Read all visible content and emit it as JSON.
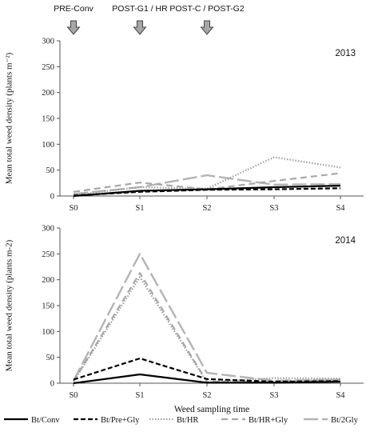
{
  "treatments": [
    {
      "name": "Bt/Conv",
      "color": "#000000",
      "dash": "",
      "width": 2.2
    },
    {
      "name": "Bt/Pre+Gly",
      "color": "#000000",
      "dash": "6,3",
      "width": 2.2
    },
    {
      "name": "Bt/HR",
      "color": "#a0a0a0",
      "dash": "1.5,2",
      "width": 2.2
    },
    {
      "name": "Bt/HR+Gly",
      "color": "#a8a8a8",
      "dash": "8,5",
      "width": 2.2
    },
    {
      "name": "Bt/2Gly",
      "color": "#b4b4b4",
      "dash": "18,5",
      "width": 2.4
    }
  ],
  "arrows": [
    {
      "label": "PRE-Conv",
      "x": "S0"
    },
    {
      "label": "POST-G1 / HR",
      "x": "S1"
    },
    {
      "label": "POST-C / POST-G2",
      "x": "S2"
    }
  ],
  "chart_data": [
    {
      "type": "line",
      "panel_label": "2013",
      "categories": [
        "S0",
        "S1",
        "S2",
        "S3",
        "S4"
      ],
      "ylabel": "Mean total weed density (plants m⁻²)",
      "xlabel": "",
      "ylim": [
        0,
        300
      ],
      "yticks": [
        0,
        50,
        100,
        150,
        200,
        250,
        300
      ],
      "series": [
        {
          "name": "Bt/Conv",
          "values": [
            0,
            10,
            13,
            17,
            20
          ]
        },
        {
          "name": "Bt/Pre+Gly",
          "values": [
            1,
            8,
            12,
            13,
            15
          ]
        },
        {
          "name": "Bt/HR",
          "values": [
            2,
            17,
            14,
            75,
            55
          ]
        },
        {
          "name": "Bt/HR+Gly",
          "values": [
            8,
            26,
            13,
            29,
            44
          ]
        },
        {
          "name": "Bt/2Gly",
          "values": [
            4,
            17,
            40,
            22,
            23
          ]
        }
      ]
    },
    {
      "type": "line",
      "panel_label": "2014",
      "categories": [
        "S0",
        "S1",
        "S2",
        "S3",
        "S4"
      ],
      "ylabel": "Mean total weed density (plants m-2)",
      "xlabel": "Weed sampling time",
      "ylim": [
        0,
        300
      ],
      "yticks": [
        0,
        50,
        100,
        150,
        200,
        250,
        300
      ],
      "series": [
        {
          "name": "Bt/Conv",
          "values": [
            0,
            17,
            1,
            1,
            3
          ]
        },
        {
          "name": "Bt/Pre+Gly",
          "values": [
            7,
            48,
            8,
            3,
            4
          ]
        },
        {
          "name": "Bt/HR",
          "values": [
            3,
            205,
            2,
            10,
            9
          ]
        },
        {
          "name": "Bt/HR+Gly",
          "values": [
            4,
            213,
            3,
            4,
            6
          ]
        },
        {
          "name": "Bt/2Gly",
          "values": [
            5,
            250,
            20,
            5,
            7
          ]
        }
      ]
    }
  ]
}
